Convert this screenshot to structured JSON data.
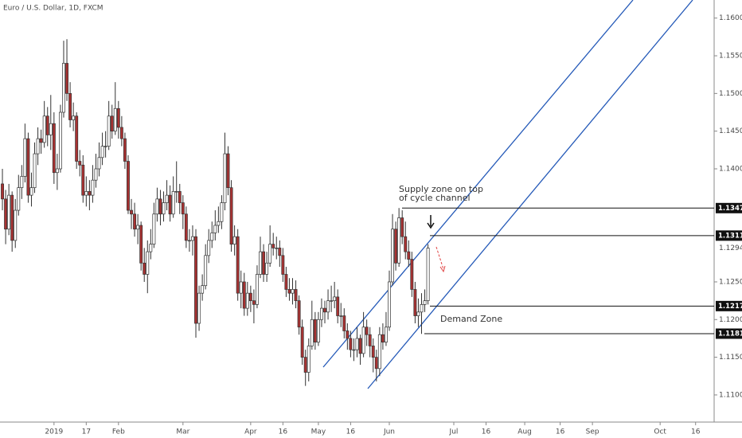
{
  "chart_data": {
    "type": "candlestick",
    "title": "Euro / U.S. Dollar, 1D, FXCM",
    "ohlc": [
      [
        1.138,
        1.14,
        1.1345,
        1.136
      ],
      [
        1.136,
        1.1372,
        1.13,
        1.132
      ],
      [
        1.132,
        1.138,
        1.1312,
        1.1365
      ],
      [
        1.1365,
        1.137,
        1.129,
        1.1305
      ],
      [
        1.1305,
        1.136,
        1.1295,
        1.1345
      ],
      [
        1.1345,
        1.1392,
        1.1338,
        1.1375
      ],
      [
        1.1375,
        1.1405,
        1.136,
        1.139
      ],
      [
        1.139,
        1.146,
        1.1382,
        1.144
      ],
      [
        1.144,
        1.1448,
        1.1355,
        1.1365
      ],
      [
        1.1365,
        1.1395,
        1.135,
        1.1375
      ],
      [
        1.1375,
        1.1435,
        1.1368,
        1.142
      ],
      [
        1.142,
        1.1455,
        1.1405,
        1.144
      ],
      [
        1.144,
        1.1452,
        1.142,
        1.1435
      ],
      [
        1.1435,
        1.149,
        1.1428,
        1.147
      ],
      [
        1.147,
        1.1482,
        1.143,
        1.1445
      ],
      [
        1.1445,
        1.1498,
        1.1425,
        1.146
      ],
      [
        1.146,
        1.1475,
        1.138,
        1.1395
      ],
      [
        1.1395,
        1.142,
        1.1372,
        1.14
      ],
      [
        1.14,
        1.1485,
        1.1395,
        1.1475
      ],
      [
        1.1475,
        1.157,
        1.1468,
        1.154
      ],
      [
        1.154,
        1.1572,
        1.149,
        1.15
      ],
      [
        1.15,
        1.1515,
        1.1455,
        1.1465
      ],
      [
        1.1465,
        1.1488,
        1.145,
        1.147
      ],
      [
        1.147,
        1.1475,
        1.14,
        1.141
      ],
      [
        1.141,
        1.1425,
        1.139,
        1.1405
      ],
      [
        1.1405,
        1.1418,
        1.1355,
        1.1365
      ],
      [
        1.1365,
        1.139,
        1.135,
        1.137
      ],
      [
        1.137,
        1.1385,
        1.1345,
        1.1365
      ],
      [
        1.1365,
        1.1405,
        1.1355,
        1.1385
      ],
      [
        1.1385,
        1.142,
        1.1375,
        1.14
      ],
      [
        1.14,
        1.1435,
        1.139,
        1.1415
      ],
      [
        1.1415,
        1.1448,
        1.1405,
        1.143
      ],
      [
        1.143,
        1.145,
        1.1415,
        1.143
      ],
      [
        1.143,
        1.149,
        1.1425,
        1.147
      ],
      [
        1.147,
        1.1485,
        1.144,
        1.145
      ],
      [
        1.145,
        1.1515,
        1.1445,
        1.148
      ],
      [
        1.148,
        1.149,
        1.144,
        1.1455
      ],
      [
        1.1455,
        1.147,
        1.143,
        1.144
      ],
      [
        1.144,
        1.1448,
        1.14,
        1.141
      ],
      [
        1.141,
        1.1418,
        1.134,
        1.1345
      ],
      [
        1.1345,
        1.136,
        1.132,
        1.134
      ],
      [
        1.134,
        1.1355,
        1.131,
        1.132
      ],
      [
        1.132,
        1.134,
        1.13,
        1.1325
      ],
      [
        1.1325,
        1.133,
        1.1265,
        1.1275
      ],
      [
        1.1275,
        1.1295,
        1.125,
        1.126
      ],
      [
        1.126,
        1.1305,
        1.1235,
        1.129
      ],
      [
        1.129,
        1.132,
        1.128,
        1.13
      ],
      [
        1.13,
        1.1355,
        1.1295,
        1.134
      ],
      [
        1.134,
        1.1375,
        1.133,
        1.136
      ],
      [
        1.136,
        1.1372,
        1.1325,
        1.134
      ],
      [
        1.134,
        1.137,
        1.133,
        1.1355
      ],
      [
        1.1355,
        1.1385,
        1.1345,
        1.1365
      ],
      [
        1.1365,
        1.1378,
        1.133,
        1.134
      ],
      [
        1.134,
        1.139,
        1.1335,
        1.137
      ],
      [
        1.137,
        1.141,
        1.1355,
        1.137
      ],
      [
        1.137,
        1.138,
        1.134,
        1.1355
      ],
      [
        1.1355,
        1.1365,
        1.132,
        1.134
      ],
      [
        1.134,
        1.135,
        1.1295,
        1.1305
      ],
      [
        1.1305,
        1.132,
        1.129,
        1.1305
      ],
      [
        1.1305,
        1.1325,
        1.1285,
        1.131
      ],
      [
        1.131,
        1.132,
        1.1176,
        1.1195
      ],
      [
        1.1195,
        1.1245,
        1.1185,
        1.1235
      ],
      [
        1.1235,
        1.126,
        1.1225,
        1.1245
      ],
      [
        1.1245,
        1.13,
        1.124,
        1.1285
      ],
      [
        1.1285,
        1.132,
        1.1275,
        1.1305
      ],
      [
        1.1305,
        1.133,
        1.1295,
        1.1315
      ],
      [
        1.1315,
        1.1345,
        1.1305,
        1.1325
      ],
      [
        1.1325,
        1.135,
        1.1315,
        1.133
      ],
      [
        1.133,
        1.1365,
        1.132,
        1.1355
      ],
      [
        1.1355,
        1.1448,
        1.1345,
        1.142
      ],
      [
        1.142,
        1.143,
        1.1365,
        1.1375
      ],
      [
        1.1375,
        1.1385,
        1.129,
        1.13
      ],
      [
        1.13,
        1.1325,
        1.1285,
        1.131
      ],
      [
        1.131,
        1.132,
        1.1225,
        1.1235
      ],
      [
        1.1235,
        1.1265,
        1.1215,
        1.125
      ],
      [
        1.125,
        1.1262,
        1.1205,
        1.1215
      ],
      [
        1.1215,
        1.125,
        1.1205,
        1.1235
      ],
      [
        1.1235,
        1.1245,
        1.121,
        1.1225
      ],
      [
        1.1225,
        1.124,
        1.1195,
        1.122
      ],
      [
        1.122,
        1.1272,
        1.1215,
        1.126
      ],
      [
        1.126,
        1.131,
        1.1255,
        1.129
      ],
      [
        1.129,
        1.13,
        1.125,
        1.126
      ],
      [
        1.126,
        1.129,
        1.125,
        1.1275
      ],
      [
        1.1275,
        1.1325,
        1.127,
        1.13
      ],
      [
        1.13,
        1.1315,
        1.1285,
        1.1295
      ],
      [
        1.1295,
        1.131,
        1.128,
        1.1295
      ],
      [
        1.1295,
        1.1305,
        1.127,
        1.1285
      ],
      [
        1.1285,
        1.1295,
        1.125,
        1.126
      ],
      [
        1.126,
        1.127,
        1.123,
        1.124
      ],
      [
        1.124,
        1.1255,
        1.1225,
        1.1235
      ],
      [
        1.1235,
        1.1255,
        1.122,
        1.124
      ],
      [
        1.124,
        1.1252,
        1.1215,
        1.1225
      ],
      [
        1.1225,
        1.1232,
        1.118,
        1.119
      ],
      [
        1.119,
        1.12,
        1.114,
        1.115
      ],
      [
        1.115,
        1.116,
        1.1112,
        1.113
      ],
      [
        1.113,
        1.1175,
        1.1118,
        1.1165
      ],
      [
        1.1165,
        1.1225,
        1.116,
        1.12
      ],
      [
        1.12,
        1.121,
        1.116,
        1.117
      ],
      [
        1.117,
        1.121,
        1.1165,
        1.12
      ],
      [
        1.12,
        1.1228,
        1.119,
        1.1215
      ],
      [
        1.1215,
        1.1225,
        1.1195,
        1.121
      ],
      [
        1.121,
        1.124,
        1.12,
        1.1225
      ],
      [
        1.1225,
        1.1245,
        1.121,
        1.1225
      ],
      [
        1.1225,
        1.125,
        1.1215,
        1.123
      ],
      [
        1.123,
        1.124,
        1.1195,
        1.1205
      ],
      [
        1.1205,
        1.1222,
        1.119,
        1.1205
      ],
      [
        1.1205,
        1.1215,
        1.1175,
        1.1185
      ],
      [
        1.1185,
        1.1195,
        1.116,
        1.1175
      ],
      [
        1.1175,
        1.1185,
        1.115,
        1.116
      ],
      [
        1.116,
        1.1175,
        1.1145,
        1.116
      ],
      [
        1.116,
        1.119,
        1.115,
        1.1175
      ],
      [
        1.1175,
        1.118,
        1.114,
        1.1155
      ],
      [
        1.1155,
        1.121,
        1.115,
        1.119
      ],
      [
        1.119,
        1.12,
        1.1165,
        1.118
      ],
      [
        1.118,
        1.119,
        1.115,
        1.1165
      ],
      [
        1.1165,
        1.1175,
        1.113,
        1.115
      ],
      [
        1.115,
        1.116,
        1.1118,
        1.1135
      ],
      [
        1.1135,
        1.119,
        1.1125,
        1.118
      ],
      [
        1.118,
        1.1195,
        1.116,
        1.117
      ],
      [
        1.117,
        1.121,
        1.1165,
        1.119
      ],
      [
        1.119,
        1.1265,
        1.1185,
        1.125
      ],
      [
        1.125,
        1.134,
        1.1245,
        1.132
      ],
      [
        1.132,
        1.133,
        1.1265,
        1.1275
      ],
      [
        1.1275,
        1.1348,
        1.127,
        1.1335
      ],
      [
        1.1335,
        1.1345,
        1.13,
        1.131
      ],
      [
        1.131,
        1.133,
        1.128,
        1.129
      ],
      [
        1.129,
        1.1305,
        1.127,
        1.128
      ],
      [
        1.128,
        1.129,
        1.123,
        1.124
      ],
      [
        1.124,
        1.125,
        1.1195,
        1.1205
      ],
      [
        1.1205,
        1.1228,
        1.119,
        1.121
      ],
      [
        1.121,
        1.1235,
        1.1181,
        1.122
      ],
      [
        1.122,
        1.124,
        1.121,
        1.1225
      ],
      [
        1.1225,
        1.13,
        1.122,
        1.12948
      ]
    ],
    "xlim": [
      -0.75,
      220.75
    ],
    "xticks": [
      {
        "value": 16,
        "label": "2019"
      },
      {
        "value": 26,
        "label": "17"
      },
      {
        "value": 36,
        "label": "Feb"
      },
      {
        "value": 56,
        "label": "Mar"
      },
      {
        "value": 77,
        "label": "Apr"
      },
      {
        "value": 87,
        "label": "16"
      },
      {
        "value": 98,
        "label": "May"
      },
      {
        "value": 108,
        "label": "16"
      },
      {
        "value": 120,
        "label": "Jun"
      },
      {
        "value": 140,
        "label": "Jul"
      },
      {
        "value": 150,
        "label": "16"
      },
      {
        "value": 162,
        "label": "Aug"
      },
      {
        "value": 173,
        "label": "16"
      },
      {
        "value": 183,
        "label": "Sep"
      },
      {
        "value": 204,
        "label": "Oct"
      },
      {
        "value": 215,
        "label": "16"
      }
    ],
    "ylim": [
      1.1064,
      1.1624
    ],
    "yticks": [
      {
        "value": 1.16,
        "label": "1.16000"
      },
      {
        "value": 1.155,
        "label": "1.15500"
      },
      {
        "value": 1.15,
        "label": "1.15000"
      },
      {
        "value": 1.145,
        "label": "1.14500"
      },
      {
        "value": 1.14,
        "label": "1.14000"
      },
      {
        "value": 1.125,
        "label": "1.12500"
      },
      {
        "value": 1.12,
        "label": "1.12000"
      },
      {
        "value": 1.115,
        "label": "1.11500"
      },
      {
        "value": 1.11,
        "label": "1.11000"
      }
    ],
    "levels": [
      1.13479,
      1.13114,
      1.12179,
      1.11813
    ],
    "last_price": 1.12948,
    "annotations": [
      "Supply zone on top",
      "of cycle channel",
      "Demand Zone"
    ],
    "up_color": "#ffffff",
    "down_color": "#a83232",
    "outline_color": "#333333"
  }
}
